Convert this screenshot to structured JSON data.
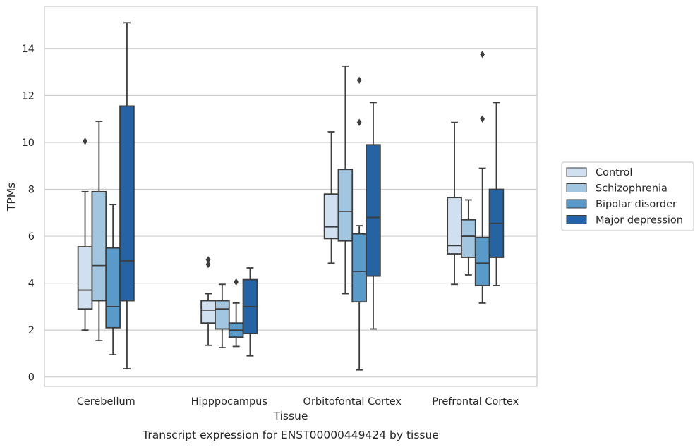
{
  "chart_data": {
    "type": "boxplot",
    "xlabel": "Tissue",
    "ylabel": "TPMs",
    "caption": "Transcript expression for ENST00000449424 by tissue",
    "ylim": [
      -0.4,
      15.8
    ],
    "yticks": [
      0,
      2,
      4,
      6,
      8,
      10,
      12,
      14
    ],
    "grid": "horizontal",
    "legend_position": "right",
    "categories": [
      "Cerebellum",
      "Hipppocampus",
      "Orbitofontal Cortex",
      "Prefrontal Cortex"
    ],
    "series": [
      {
        "name": "Control",
        "color": "#d0e0f0",
        "boxes": [
          {
            "whislo": 2.0,
            "q1": 2.9,
            "med": 3.7,
            "q3": 5.55,
            "whishi": 7.9,
            "fliers": [
              10.05
            ]
          },
          {
            "whislo": 1.35,
            "q1": 2.3,
            "med": 2.85,
            "q3": 3.25,
            "whishi": 3.55,
            "fliers": [
              4.8,
              5.0
            ]
          },
          {
            "whislo": 4.85,
            "q1": 5.9,
            "med": 6.4,
            "q3": 7.8,
            "whishi": 10.45,
            "fliers": []
          },
          {
            "whislo": 3.95,
            "q1": 5.25,
            "med": 5.6,
            "q3": 7.65,
            "whishi": 10.85,
            "fliers": []
          }
        ]
      },
      {
        "name": "Schizophrenia",
        "color": "#a2c6e0",
        "boxes": [
          {
            "whislo": 1.55,
            "q1": 3.25,
            "med": 4.75,
            "q3": 7.9,
            "whishi": 10.9,
            "fliers": []
          },
          {
            "whislo": 1.25,
            "q1": 2.05,
            "med": 2.9,
            "q3": 3.25,
            "whishi": 3.95,
            "fliers": []
          },
          {
            "whislo": 3.55,
            "q1": 5.8,
            "med": 7.05,
            "q3": 8.85,
            "whishi": 13.25,
            "fliers": []
          },
          {
            "whislo": 4.35,
            "q1": 5.1,
            "med": 6.0,
            "q3": 6.7,
            "whishi": 7.55,
            "fliers": []
          }
        ]
      },
      {
        "name": "Bipolar disorder",
        "color": "#5a9ac9",
        "boxes": [
          {
            "whislo": 0.95,
            "q1": 2.1,
            "med": 3.0,
            "q3": 5.5,
            "whishi": 7.35,
            "fliers": []
          },
          {
            "whislo": 1.3,
            "q1": 1.7,
            "med": 2.0,
            "q3": 2.3,
            "whishi": 3.15,
            "fliers": [
              4.05
            ]
          },
          {
            "whislo": 0.3,
            "q1": 3.2,
            "med": 4.5,
            "q3": 6.1,
            "whishi": 6.45,
            "fliers": [
              10.85,
              12.65
            ]
          },
          {
            "whislo": 3.15,
            "q1": 3.9,
            "med": 4.85,
            "q3": 5.95,
            "whishi": 8.9,
            "fliers": [
              11.0,
              13.75
            ]
          }
        ]
      },
      {
        "name": "Major depression",
        "color": "#2563a3",
        "boxes": [
          {
            "whislo": 0.35,
            "q1": 3.25,
            "med": 4.95,
            "q3": 11.55,
            "whishi": 15.1,
            "fliers": []
          },
          {
            "whislo": 0.9,
            "q1": 1.85,
            "med": 3.0,
            "q3": 4.15,
            "whishi": 4.65,
            "fliers": []
          },
          {
            "whislo": 2.05,
            "q1": 4.3,
            "med": 6.8,
            "q3": 9.9,
            "whishi": 11.7,
            "fliers": []
          },
          {
            "whislo": 3.9,
            "q1": 5.1,
            "med": 6.55,
            "q3": 8.0,
            "whishi": 11.7,
            "fliers": []
          }
        ]
      }
    ]
  }
}
